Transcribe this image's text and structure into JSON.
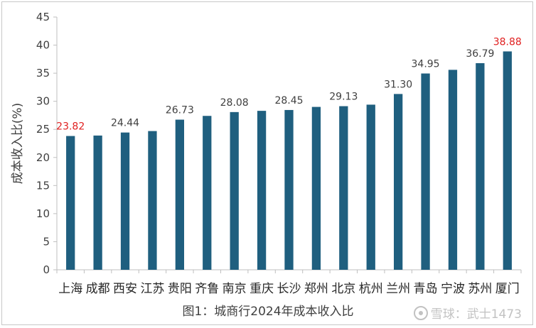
{
  "chart_data": {
    "type": "bar",
    "title": "",
    "xlabel": "",
    "ylabel": "成本收入比(%)",
    "ylim": [
      0,
      45
    ],
    "yticks": [
      0,
      5,
      10,
      15,
      20,
      25,
      30,
      35,
      40,
      45
    ],
    "grid": false,
    "categories": [
      "上海",
      "成都",
      "西安",
      "江苏",
      "贵阳",
      "齐鲁",
      "南京",
      "重庆",
      "长沙",
      "郑州",
      "北京",
      "杭州",
      "兰州",
      "青岛",
      "宁波",
      "苏州",
      "厦门"
    ],
    "values": [
      23.82,
      23.9,
      24.44,
      24.7,
      26.73,
      27.4,
      28.08,
      28.3,
      28.45,
      29.0,
      29.13,
      29.4,
      31.3,
      34.95,
      35.6,
      36.79,
      38.88
    ],
    "data_labels": {
      "0": "23.82",
      "2": "24.44",
      "4": "26.73",
      "6": "28.08",
      "8": "28.45",
      "10": "29.13",
      "12": "31.30",
      "13": "34.95",
      "15": "36.79",
      "16": "38.88"
    },
    "highlight_label_indices": [
      0,
      16
    ],
    "bar_color": "#1f5f7f",
    "label_color": "#404040",
    "highlight_color": "#e02020"
  },
  "caption": "图1：城商行2024年成本收入比",
  "watermark": "雪球：武士1473"
}
